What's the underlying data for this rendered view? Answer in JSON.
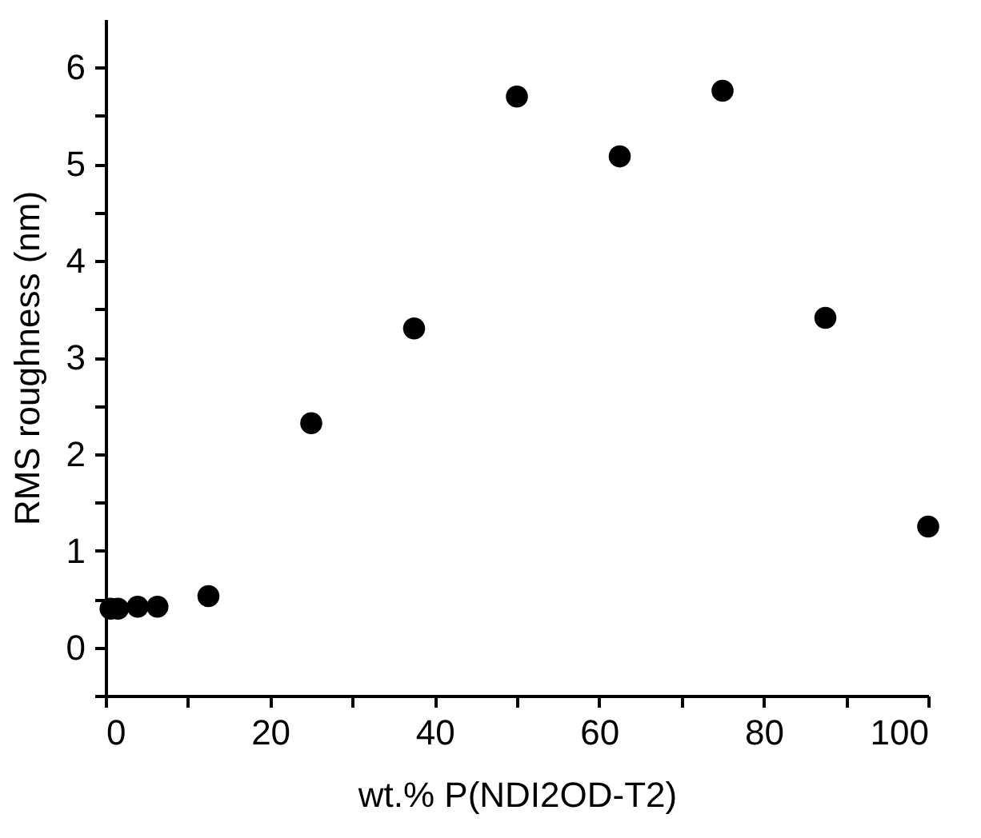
{
  "chart_data": {
    "type": "scatter",
    "xlabel": "wt.% P(NDI2OD-T2)",
    "ylabel": "RMS roughness (nm)",
    "x": [
      0.6,
      1.5,
      3.9,
      6.3,
      12.5,
      25,
      37.5,
      50,
      62.5,
      75,
      87.5,
      100
    ],
    "series": [
      {
        "color": "#000000",
        "values": [
          0.4,
          0.4,
          0.42,
          0.42,
          0.53,
          2.32,
          3.3,
          5.7,
          5.08,
          5.76,
          3.41,
          1.25
        ]
      }
    ],
    "xlim": [
      0,
      100
    ],
    "ylim": [
      -0.5,
      6.5
    ],
    "xticks": [
      0,
      {
        "value": 10,
        "label": null
      },
      20,
      {
        "value": 30,
        "label": null
      },
      40,
      {
        "value": 50,
        "label": null
      },
      60,
      {
        "value": 70,
        "label": null
      },
      80,
      {
        "value": 90,
        "label": null
      },
      100
    ],
    "yticks": [
      {
        "value": -0.5,
        "label": null
      },
      0,
      {
        "value": 0.5,
        "label": null
      },
      1,
      {
        "value": 1.5,
        "label": null
      },
      2,
      {
        "value": 2.5,
        "label": null
      },
      3,
      {
        "value": 3.5,
        "label": null
      },
      4,
      {
        "value": 4.5,
        "label": null
      },
      5,
      {
        "value": 5.5,
        "label": null
      },
      6
    ],
    "marker": "circle",
    "grid": false,
    "legend": false
  }
}
